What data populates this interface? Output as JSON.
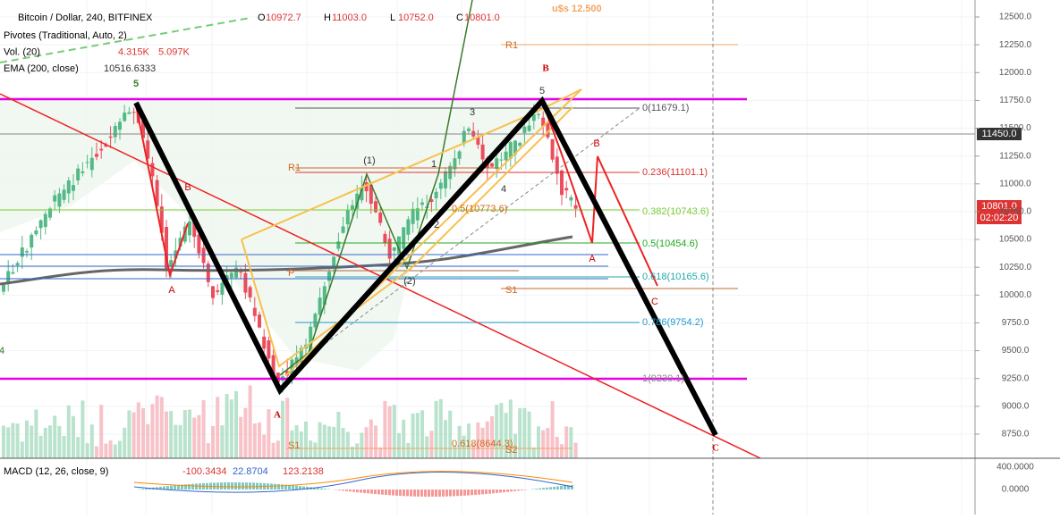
{
  "header": {
    "symbol": "Bitcoin / Dollar, 240, BITFINEX",
    "ohlc": [
      {
        "key": "O",
        "value": "10972.7"
      },
      {
        "key": "H",
        "value": "11003.0"
      },
      {
        "key": "L",
        "value": "10752.0"
      },
      {
        "key": "C",
        "value": "10801.0"
      }
    ],
    "indicators": [
      {
        "name": "Pivotes (Traditional, Auto, 2)",
        "values": []
      },
      {
        "name": "Vol. (20)",
        "values": [
          "4.315K",
          "5.097K"
        ]
      },
      {
        "name": "EMA (200, close)",
        "values": [
          "10516.6333"
        ]
      }
    ]
  },
  "annotation": "u$s 12.500",
  "price_axis": {
    "ticks": [
      {
        "value": 12500,
        "label": "12500.0"
      },
      {
        "value": 12250,
        "label": "12250.0"
      },
      {
        "value": 12000,
        "label": "12000.0"
      },
      {
        "value": 11750,
        "label": "11750.0"
      },
      {
        "value": 11500,
        "label": "11500.0"
      },
      {
        "value": 11250,
        "label": "11250.0"
      },
      {
        "value": 11000,
        "label": "11000.0"
      },
      {
        "value": 10750,
        "label": "10750.0"
      },
      {
        "value": 10500,
        "label": "10500.0"
      },
      {
        "value": 10250,
        "label": "10250.0"
      },
      {
        "value": 10000,
        "label": "10000.0"
      },
      {
        "value": 9750,
        "label": "9750.0"
      },
      {
        "value": 9500,
        "label": "9500.0"
      },
      {
        "value": 9250,
        "label": "9250.0"
      },
      {
        "value": 9000,
        "label": "9000.0"
      },
      {
        "value": 8750,
        "label": "8750.0"
      }
    ],
    "tags": [
      "11450.0",
      "10801.0",
      "02:02:20"
    ]
  },
  "macd": {
    "name": "MACD (12, 26, close, 9)",
    "values": [
      "-100.3434",
      "22.8704",
      "123.2138"
    ],
    "axis": [
      "400.0000",
      "0.0000"
    ]
  },
  "fib_labels": [
    "0(11679.1)",
    "0.236(11101.1)",
    "0.382(10743.6)",
    "0.5(10454.6)",
    "0.618(10165.6)",
    "0.786(9754.2)",
    "1(9230.1)"
  ],
  "pivot_labels": [
    "R1",
    "R1",
    "P",
    "S1",
    "S1",
    "S2",
    "0.5(10773.6)",
    "0.618(8644.3)"
  ],
  "wave_labels": [
    "5",
    "B",
    "5",
    "3",
    "(1)",
    "1",
    "4",
    "2",
    "(2)",
    "A",
    "B",
    "A",
    "A",
    "C",
    "C",
    "B",
    "4"
  ]
}
